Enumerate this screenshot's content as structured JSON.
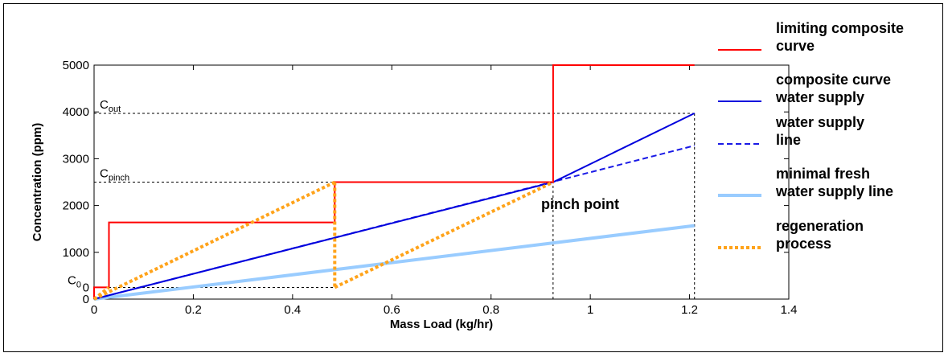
{
  "chart_data": {
    "type": "line",
    "xlabel": "Mass Load (kg/hr)",
    "ylabel": "Concentration (ppm)",
    "xlim": [
      0,
      1.4
    ],
    "ylim": [
      0,
      5000
    ],
    "x_ticks": [
      0,
      0.2,
      0.4,
      0.6,
      0.8,
      1,
      1.2,
      1.4
    ],
    "x_tick_labels": [
      "0",
      "0.2",
      "0.4",
      "0.6",
      "0.8",
      "1",
      "1.2",
      "1.4"
    ],
    "y_ticks": [
      0,
      1000,
      2000,
      3000,
      4000,
      5000
    ],
    "y_tick_labels": [
      "0",
      "1000",
      "2000",
      "3000",
      "4000",
      "5000"
    ],
    "extra_y_tick_label": "0",
    "grid": false,
    "legend_position": "right, outside plot",
    "series": [
      {
        "name": "limiting composite curve",
        "style": "solid",
        "color": "#ff0000",
        "width": 2,
        "points": [
          [
            0,
            0
          ],
          [
            0,
            250
          ],
          [
            0.03,
            250
          ],
          [
            0.03,
            1640
          ],
          [
            0.485,
            1640
          ],
          [
            0.485,
            2500
          ],
          [
            0.925,
            2500
          ],
          [
            0.925,
            5000
          ],
          [
            1.21,
            5000
          ]
        ]
      },
      {
        "name": "composite curve water supply",
        "style": "solid",
        "color": "#0000dd",
        "width": 2,
        "points": [
          [
            0,
            0
          ],
          [
            0.925,
            2500
          ],
          [
            1.21,
            3970
          ]
        ]
      },
      {
        "name": "water supply line",
        "style": "dashed",
        "color": "#1a1ae6",
        "width": 2,
        "points": [
          [
            0,
            0
          ],
          [
            1.21,
            3280
          ]
        ]
      },
      {
        "name": "minimal fresh water supply line",
        "style": "solid",
        "color": "#99ccff",
        "width": 4,
        "points": [
          [
            0,
            0
          ],
          [
            1.21,
            1570
          ]
        ]
      },
      {
        "name": "regeneration process",
        "style": "dotted",
        "color": "#ffa31a",
        "width": 4,
        "segments": [
          [
            [
              0,
              0
            ],
            [
              0.485,
              2500
            ]
          ],
          [
            [
              0.485,
              2500
            ],
            [
              0.485,
              250
            ]
          ],
          [
            [
              0.485,
              250
            ],
            [
              0.925,
              2500
            ]
          ],
          [
            [
              0,
              0
            ],
            [
              0.03,
              250
            ]
          ]
        ]
      }
    ],
    "reference_lines": [
      {
        "orientation": "h",
        "y": 3970,
        "x_from": 0,
        "x_to": 1.21
      },
      {
        "orientation": "h",
        "y": 2500,
        "x_from": 0,
        "x_to": 0.925
      },
      {
        "orientation": "h",
        "y": 250,
        "x_from": 0,
        "x_to": 0.485
      },
      {
        "orientation": "v",
        "x": 0.925,
        "y_from": 0,
        "y_to": 2500
      },
      {
        "orientation": "v",
        "x": 1.21,
        "y_from": 0,
        "y_to": 3970
      }
    ],
    "annotations": [
      {
        "main": "C",
        "sub": "out",
        "y": 3970
      },
      {
        "main": "C",
        "sub": "pinch",
        "y": 2500
      },
      {
        "main": "C",
        "sub": "0",
        "y": 250
      }
    ],
    "pinch_label": "pinch point",
    "legend": [
      {
        "line1": "limiting composite",
        "line2": "curve"
      },
      {
        "line1": "composite curve",
        "line2": "water supply"
      },
      {
        "line1": "water supply",
        "line2": "line"
      },
      {
        "line1": "minimal fresh",
        "line2": "water supply line"
      },
      {
        "line1": "regeneration",
        "line2": "process"
      }
    ]
  }
}
